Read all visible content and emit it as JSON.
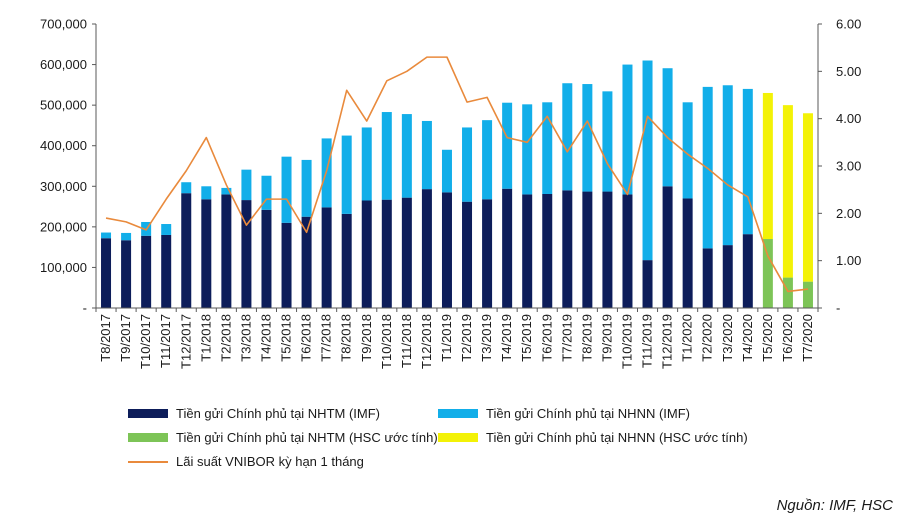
{
  "colors": {
    "nhtm_imf": "#0d1d5a",
    "nhnn_imf": "#12aee9",
    "nhtm_hsc": "#7dc457",
    "nhnn_hsc": "#f3f207",
    "vnibor": "#e98a3c",
    "axis": "#595959"
  },
  "legend": {
    "nhtm_imf": "Tiền gửi Chính phủ tại NHTM (IMF)",
    "nhnn_imf": "Tiền gửi Chính phủ tại NHNN (IMF)",
    "nhtm_hsc": "Tiền gửi Chính phủ tại NHTM (HSC ước tính)",
    "nhnn_hsc": "Tiền gửi Chính phủ tại NHNN (HSC ước tính)",
    "vnibor": "Lãi suất VNIBOR kỳ hạn 1 tháng"
  },
  "source": "Nguồn: IMF, HSC",
  "chart_data": {
    "type": "bar",
    "stacked": true,
    "categories": [
      "T8/2017",
      "T9/2017",
      "T10/2017",
      "T11/2017",
      "T12/2017",
      "T1/2018",
      "T2/2018",
      "T3/2018",
      "T4/2018",
      "T5/2018",
      "T6/2018",
      "T7/2018",
      "T8/2018",
      "T9/2018",
      "T10/2018",
      "T11/2018",
      "T12/2018",
      "T1/2019",
      "T2/2019",
      "T3/2019",
      "T4/2019",
      "T5/2019",
      "T6/2019",
      "T7/2019",
      "T8/2019",
      "T9/2019",
      "T10/2019",
      "T11/2019",
      "T12/2019",
      "T1/2020",
      "T2/2020",
      "T3/2020",
      "T4/2020",
      "T5/2020",
      "T6/2020",
      "T7/2020"
    ],
    "series": [
      {
        "name": "Tiền gửi Chính phủ tại NHTM (IMF)",
        "key": "nhtm_imf",
        "stack_order": 0,
        "values": [
          172000,
          167000,
          178000,
          180000,
          283000,
          268000,
          280000,
          266000,
          242000,
          210000,
          225000,
          248000,
          232000,
          265000,
          267000,
          272000,
          293000,
          285000,
          262000,
          268000,
          294000,
          280000,
          281000,
          290000,
          287000,
          287000,
          280000,
          118000,
          300000,
          270000,
          147000,
          155000,
          182000,
          null,
          null,
          null
        ]
      },
      {
        "name": "Tiền gửi Chính phủ tại NHNN (IMF)",
        "key": "nhnn_imf",
        "stack_order": 1,
        "values": [
          14000,
          18000,
          34000,
          27000,
          27000,
          32000,
          16000,
          75000,
          84000,
          163000,
          140000,
          170000,
          193000,
          180000,
          216000,
          206000,
          168000,
          105000,
          183000,
          195000,
          212000,
          222000,
          226000,
          264000,
          265000,
          247000,
          320000,
          492000,
          291000,
          237000,
          398000,
          394000,
          358000,
          null,
          null,
          null
        ]
      },
      {
        "name": "Tiền gửi Chính phủ tại NHTM (HSC ước tính)",
        "key": "nhtm_hsc",
        "stack_order": 0,
        "values": [
          null,
          null,
          null,
          null,
          null,
          null,
          null,
          null,
          null,
          null,
          null,
          null,
          null,
          null,
          null,
          null,
          null,
          null,
          null,
          null,
          null,
          null,
          null,
          null,
          null,
          null,
          null,
          null,
          null,
          null,
          null,
          null,
          null,
          170000,
          75000,
          65000
        ]
      },
      {
        "name": "Tiền gửi Chính phủ tại NHNN (HSC ước tính)",
        "key": "nhnn_hsc",
        "stack_order": 1,
        "values": [
          null,
          null,
          null,
          null,
          null,
          null,
          null,
          null,
          null,
          null,
          null,
          null,
          null,
          null,
          null,
          null,
          null,
          null,
          null,
          null,
          null,
          null,
          null,
          null,
          null,
          null,
          null,
          null,
          null,
          null,
          null,
          null,
          null,
          360000,
          425000,
          415000
        ]
      },
      {
        "name": "Lãi suất VNIBOR kỳ hạn 1 tháng",
        "key": "vnibor",
        "type": "line",
        "axis": "right",
        "values": [
          1.9,
          1.82,
          1.65,
          2.3,
          2.9,
          3.6,
          2.6,
          1.75,
          2.3,
          2.3,
          1.6,
          2.9,
          4.6,
          3.95,
          4.8,
          5.0,
          5.3,
          5.3,
          4.35,
          4.45,
          3.6,
          3.5,
          4.05,
          3.3,
          3.95,
          3.05,
          2.4,
          4.05,
          3.6,
          3.25,
          2.95,
          2.6,
          2.35,
          1.1,
          0.35,
          0.4
        ]
      }
    ],
    "y_left": {
      "min": 0,
      "max": 700000,
      "step": 100000,
      "tick_labels": [
        "-",
        "100,000",
        "200,000",
        "300,000",
        "400,000",
        "500,000",
        "600,000",
        "700,000"
      ]
    },
    "y_right": {
      "min": 0,
      "max": 6,
      "step": 1,
      "tick_labels": [
        "-",
        "1.00",
        "2.00",
        "3.00",
        "4.00",
        "5.00",
        "6.00"
      ]
    },
    "grid": false,
    "legend_position": "bottom"
  }
}
